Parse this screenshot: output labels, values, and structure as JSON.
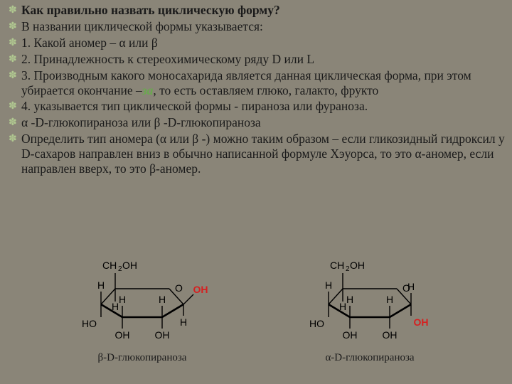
{
  "lines": [
    {
      "text": "Как правильно назвать циклическую форму?",
      "bold": true
    },
    {
      "text": "В названии циклической формы указывается:"
    },
    {
      "text": "1. Какой аномер – α или β"
    },
    {
      "text": "2. Принадлежность к стереохимическому ряду D или L"
    },
    {
      "text": "3. Производным какого моносахарида является данная циклическая форма, при этом убирается окончание –",
      "suffixHighlight": "за",
      "postSuffix": ", то есть оставляем глюко, галакто, фрукто"
    },
    {
      "text": "4. указывается тип циклической формы - пираноза или фураноза."
    },
    {
      "text": "α -D-глюкопираноза  или β -D-глюкопираноза"
    },
    {
      "text": "Определить тип аномера (α или β -) можно таким образом – если гликозидный гидроксил у D-сахаров направлен вниз в обычно написанной формуле Хэуорса, то это α-аномер, если направлен вверх, то это β-аномер."
    }
  ],
  "bulletGlyph": "✽",
  "molecules": {
    "left": {
      "caption": "β-D-глюкопираноза",
      "variant": "beta"
    },
    "right": {
      "caption": "α-D-глюкопираноза",
      "variant": "alpha"
    }
  },
  "style": {
    "atoms": {
      "CH2OH": "CH₂OH",
      "OH": "OH",
      "H": "H",
      "O": "O",
      "HO": "HO"
    },
    "ohColor": "#d62020"
  }
}
